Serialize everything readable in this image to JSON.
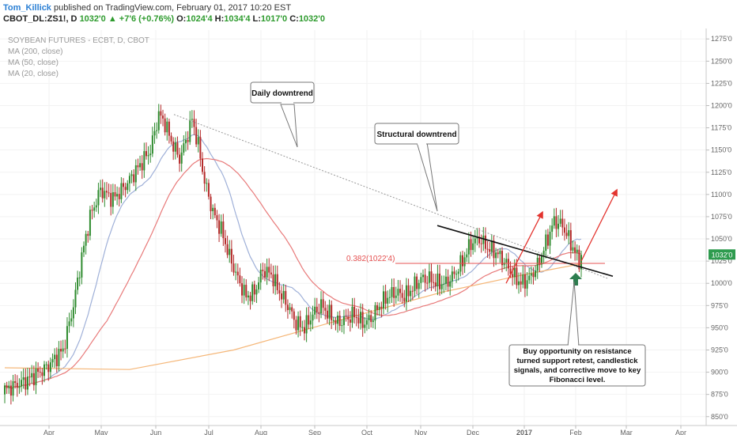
{
  "header": {
    "author": "Tom_Killick",
    "published": "published on TradingView.com, February 01, 2017 10:20 EST",
    "symbol": "CBOT_DL:ZS1!, D",
    "last": "1032'0",
    "change": "▲ +7'6 (+0.76%)",
    "o_label": "O:",
    "o": "1024'4",
    "h_label": "H:",
    "h": "1034'4",
    "l_label": "L:",
    "l": "1017'0",
    "c_label": "C:",
    "c": "1032'0"
  },
  "legend": {
    "title": "SOYBEAN FUTURES - ECBT, D, CBOT",
    "ma200": "MA (200, close)",
    "ma50": "MA (50, close)",
    "ma20": "MA (20, close)"
  },
  "colors": {
    "up": "#2e8b2e",
    "down": "#b52a2a",
    "ma200": "#f5b779",
    "ma50": "#e87a7a",
    "ma20": "#9fb0d8",
    "arrow": "#e3342f",
    "fib": "#e55050",
    "price_badge": "#2e9b4e"
  },
  "chart_data": {
    "type": "candlestick",
    "ylim": [
      840,
      1285
    ],
    "y_ticks": [
      "850'0",
      "875'0",
      "900'0",
      "925'0",
      "950'0",
      "975'0",
      "1000'0",
      "1025'0",
      "1050'0",
      "1075'0",
      "1100'0",
      "1125'0",
      "1150'0",
      "1175'0",
      "1200'0",
      "1225'0",
      "1250'0",
      "1275'0"
    ],
    "x_ticks": [
      "Apr",
      "May",
      "Jun",
      "Jul",
      "Aug",
      "Sep",
      "Oct",
      "Nov",
      "Dec",
      "2017",
      "Feb",
      "Mar",
      "Apr"
    ],
    "last_price_label": "1032'0",
    "fib_label": "0.382(1022'4)",
    "fib_level": 1022.5,
    "annotations": {
      "daily": "Daily downtrend",
      "structural": "Structural downtrend",
      "buy": "Buy opportunity on resistance turned support retest, candlestick signals, and corrective move to key Fibonacci level."
    }
  }
}
